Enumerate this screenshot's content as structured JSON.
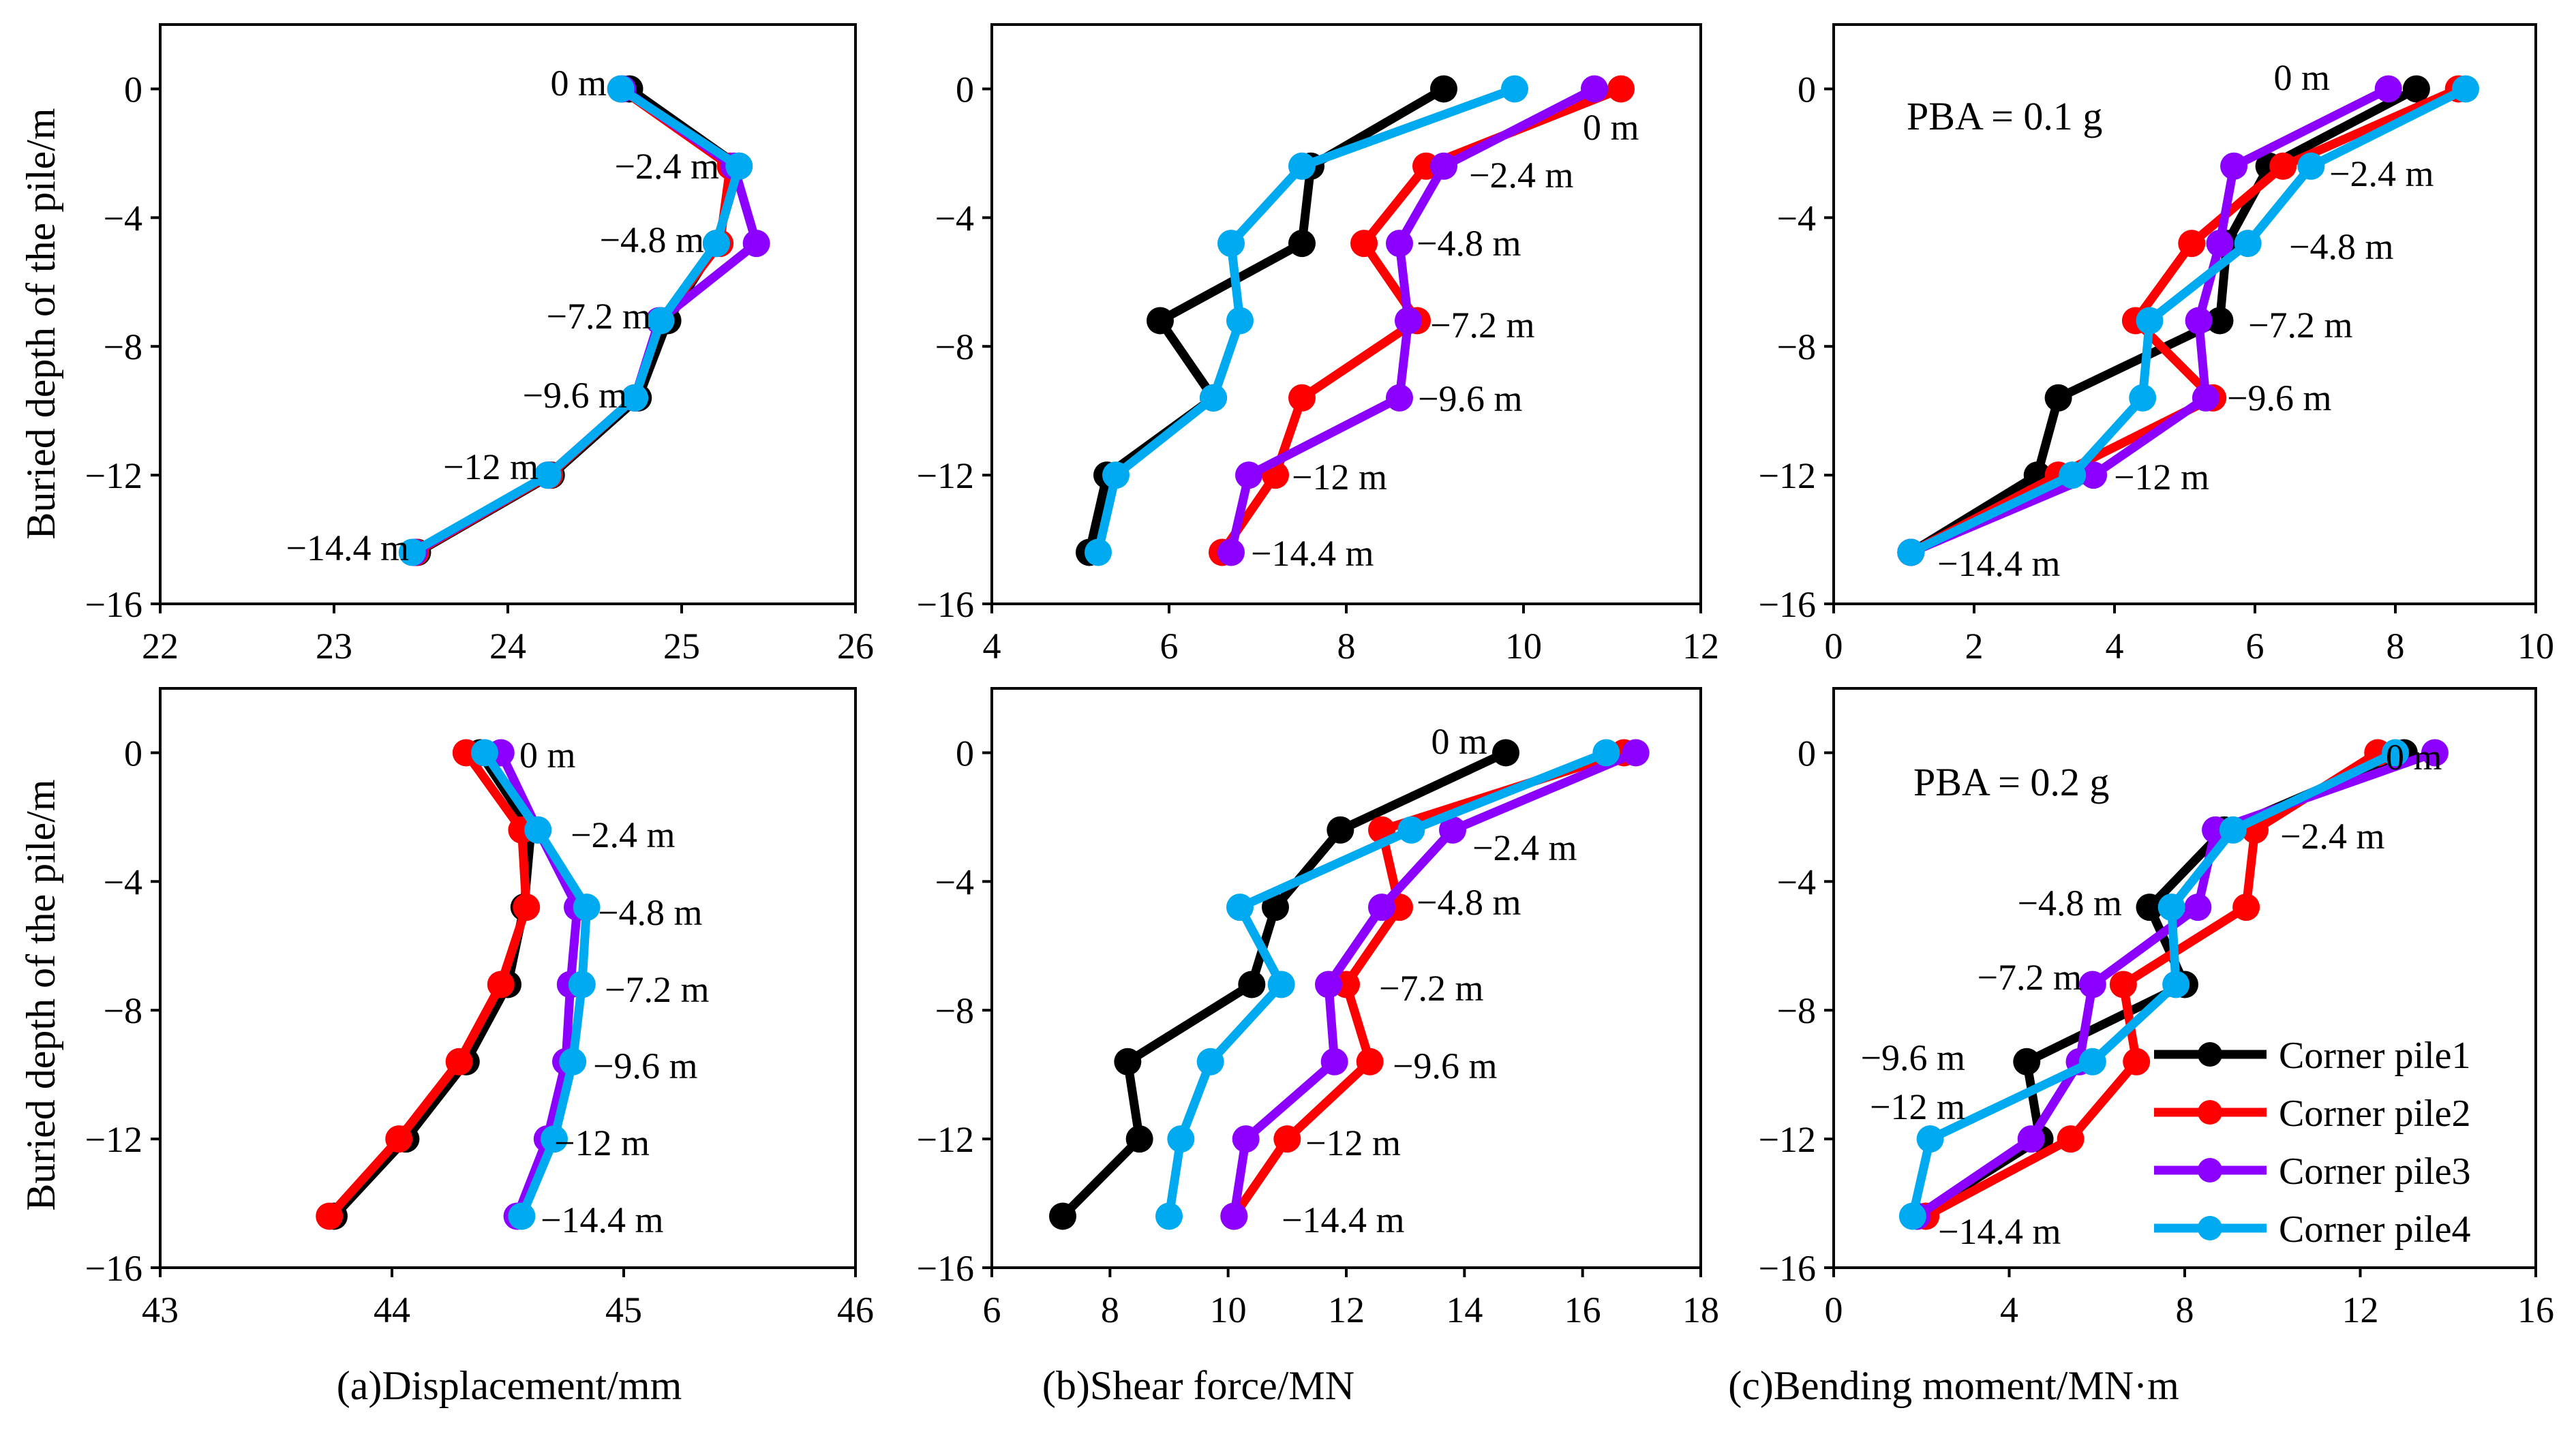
{
  "y_axis": {
    "label": "Buried depth of the pile/m",
    "ticks": [
      0,
      -4,
      -8,
      -12,
      -16
    ],
    "tick_labels": [
      "0",
      "−4",
      "−8",
      "−12",
      "−16"
    ],
    "ylim": [
      -16,
      2
    ]
  },
  "depth_labels": [
    "0 m",
    "−2.4 m",
    "−4.8 m",
    "−7.2 m",
    "−9.6 m",
    "−12 m",
    "−14.4 m"
  ],
  "depths": [
    0,
    -2.4,
    -4.8,
    -7.2,
    -9.6,
    -12,
    -14.4
  ],
  "captions": {
    "a": "(a)Displacement/mm",
    "b": "(b)Shear force/MN",
    "c": "(c)Bending moment/MN·m"
  },
  "pba_labels": [
    "PBA = 0.1 g",
    "PBA = 0.2 g"
  ],
  "legend": [
    {
      "name": "Corner pile1",
      "color": "#000000"
    },
    {
      "name": "Corner pile2",
      "color": "#ff0000"
    },
    {
      "name": "Corner pile3",
      "color": "#8b00ff"
    },
    {
      "name": "Corner pile4",
      "color": "#00aaf0"
    }
  ],
  "chart_data": [
    {
      "type": "line",
      "id": "a1",
      "quantity": "Displacement/mm",
      "pba": "0.1 g",
      "xlim": [
        22,
        26
      ],
      "x_ticks": [
        "22",
        "23",
        "24",
        "25",
        "26"
      ],
      "series": [
        {
          "name": "Corner pile1",
          "x": [
            24.7,
            25.33,
            25.2,
            24.92,
            24.75,
            24.25,
            23.48
          ]
        },
        {
          "name": "Corner pile2",
          "x": [
            24.65,
            25.28,
            25.22,
            24.88,
            24.73,
            24.24,
            23.47
          ]
        },
        {
          "name": "Corner pile3",
          "x": [
            24.66,
            25.3,
            25.43,
            24.87,
            24.73,
            24.23,
            23.46
          ]
        },
        {
          "name": "Corner pile4",
          "x": [
            24.65,
            25.33,
            25.2,
            24.88,
            24.73,
            24.23,
            23.45
          ]
        }
      ]
    },
    {
      "type": "line",
      "id": "b1",
      "quantity": "Shear force/MN",
      "pba": "0.1 g",
      "xlim": [
        4,
        12
      ],
      "x_ticks": [
        "4",
        "6",
        "8",
        "10",
        "12"
      ],
      "series": [
        {
          "name": "Corner pile1",
          "x": [
            9.1,
            7.6,
            7.5,
            5.9,
            6.5,
            5.3,
            5.1
          ]
        },
        {
          "name": "Corner pile2",
          "x": [
            11.1,
            8.9,
            8.2,
            8.8,
            7.5,
            7.2,
            6.6
          ]
        },
        {
          "name": "Corner pile3",
          "x": [
            10.8,
            9.1,
            8.6,
            8.7,
            8.6,
            6.9,
            6.7
          ]
        },
        {
          "name": "Corner pile4",
          "x": [
            9.9,
            7.5,
            6.7,
            6.8,
            6.5,
            5.4,
            5.2
          ]
        }
      ]
    },
    {
      "type": "line",
      "id": "c1",
      "quantity": "Bending moment/MN·m",
      "pba": "0.1 g",
      "xlim": [
        0,
        10
      ],
      "x_ticks": [
        "0",
        "2",
        "4",
        "6",
        "8",
        "10"
      ],
      "series": [
        {
          "name": "Corner pile1",
          "x": [
            8.3,
            6.2,
            5.6,
            5.5,
            3.2,
            2.9,
            1.1
          ]
        },
        {
          "name": "Corner pile2",
          "x": [
            8.9,
            6.4,
            5.1,
            4.3,
            5.4,
            3.2,
            1.1
          ]
        },
        {
          "name": "Corner pile3",
          "x": [
            7.9,
            5.7,
            5.5,
            5.2,
            5.3,
            3.7,
            1.1
          ]
        },
        {
          "name": "Corner pile4",
          "x": [
            9.0,
            6.8,
            5.9,
            4.5,
            4.4,
            3.4,
            1.1
          ]
        }
      ]
    },
    {
      "type": "line",
      "id": "a2",
      "quantity": "Displacement/mm",
      "pba": "0.2 g",
      "xlim": [
        43,
        46
      ],
      "x_ticks": [
        "43",
        "44",
        "45",
        "46"
      ],
      "series": [
        {
          "name": "Corner pile1",
          "x": [
            44.38,
            44.6,
            44.57,
            44.5,
            44.32,
            44.06,
            43.75
          ]
        },
        {
          "name": "Corner pile2",
          "x": [
            44.32,
            44.56,
            44.58,
            44.47,
            44.29,
            44.03,
            43.73
          ]
        },
        {
          "name": "Corner pile3",
          "x": [
            44.47,
            44.63,
            44.8,
            44.77,
            44.75,
            44.67,
            44.54
          ]
        },
        {
          "name": "Corner pile4",
          "x": [
            44.4,
            44.63,
            44.84,
            44.82,
            44.78,
            44.7,
            44.56
          ]
        }
      ]
    },
    {
      "type": "line",
      "id": "b2",
      "quantity": "Shear force/MN",
      "pba": "0.2 g",
      "xlim": [
        6,
        18
      ],
      "x_ticks": [
        "6",
        "8",
        "10",
        "12",
        "14",
        "16",
        "18"
      ],
      "series": [
        {
          "name": "Corner pile1",
          "x": [
            14.7,
            11.9,
            10.8,
            10.4,
            8.3,
            8.5,
            7.2
          ]
        },
        {
          "name": "Corner pile2",
          "x": [
            16.7,
            12.6,
            12.9,
            12.0,
            12.4,
            11.0,
            10.1
          ]
        },
        {
          "name": "Corner pile3",
          "x": [
            16.9,
            13.8,
            12.6,
            11.7,
            11.8,
            10.3,
            10.1
          ]
        },
        {
          "name": "Corner pile4",
          "x": [
            16.4,
            13.1,
            10.2,
            10.9,
            9.7,
            9.2,
            9.0
          ]
        }
      ]
    },
    {
      "type": "line",
      "id": "c2",
      "quantity": "Bending moment/MN·m",
      "pba": "0.2 g",
      "xlim": [
        0,
        16
      ],
      "x_ticks": [
        "0",
        "4",
        "8",
        "12",
        "16"
      ],
      "series": [
        {
          "name": "Corner pile1",
          "x": [
            13.0,
            8.9,
            7.2,
            8.0,
            4.4,
            4.7,
            1.9
          ]
        },
        {
          "name": "Corner pile2",
          "x": [
            12.4,
            9.6,
            9.4,
            6.6,
            6.9,
            5.4,
            2.1
          ]
        },
        {
          "name": "Corner pile3",
          "x": [
            13.7,
            8.7,
            8.3,
            5.9,
            5.6,
            4.5,
            1.9
          ]
        },
        {
          "name": "Corner pile4",
          "x": [
            12.8,
            9.1,
            7.7,
            7.8,
            5.9,
            2.2,
            1.8
          ]
        }
      ]
    }
  ]
}
